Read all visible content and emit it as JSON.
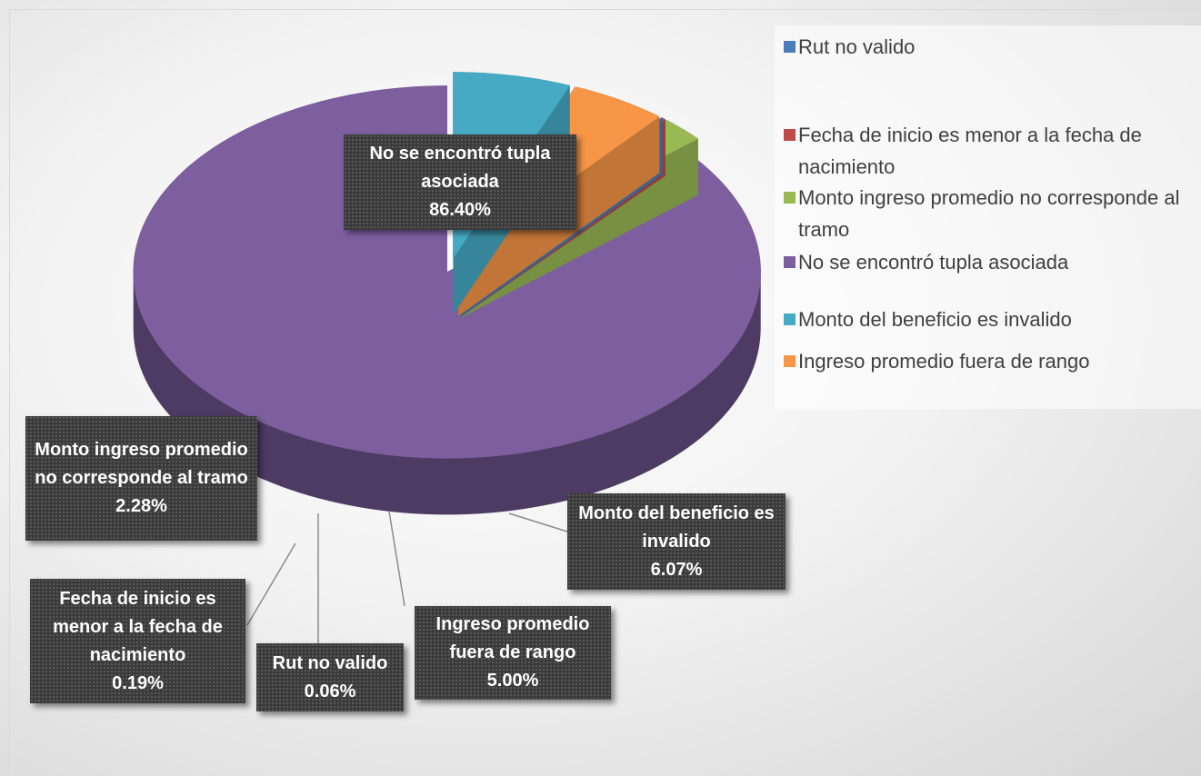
{
  "chart_data": {
    "type": "pie3d",
    "categories": [
      "Rut no valido",
      "Fecha de inicio es menor a la fecha de nacimiento",
      "Monto ingreso promedio no corresponde al tramo",
      "No se encontró tupla asociada",
      "Monto del beneficio es invalido",
      "Ingreso promedio fuera de rango"
    ],
    "values": [
      0.06,
      0.19,
      2.28,
      86.4,
      6.07,
      5.0
    ],
    "value_labels": [
      "0.06%",
      "0.19%",
      "2.28%",
      "86.40%",
      "6.07%",
      "5.00%"
    ],
    "colors": [
      "#4a7ebb",
      "#be4b48",
      "#98b954",
      "#7d5fa0",
      "#46aac5",
      "#f79646"
    ],
    "legend": "right"
  }
}
